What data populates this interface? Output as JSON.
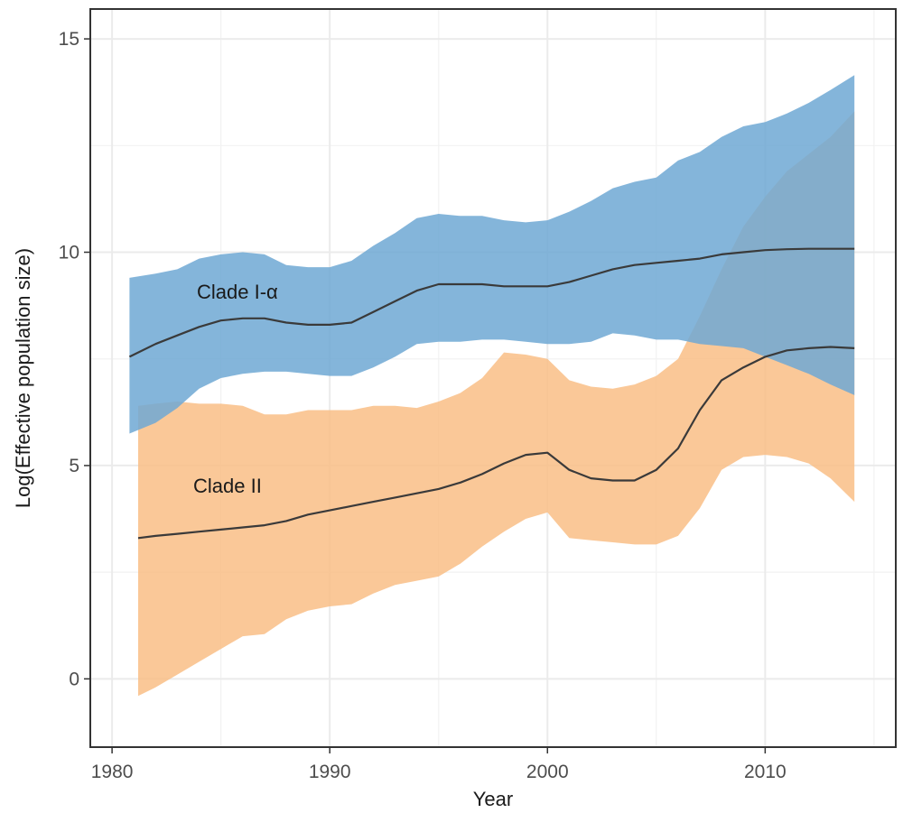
{
  "chart_data": {
    "type": "area",
    "xlabel": "Year",
    "ylabel": "Log(Effective population size)",
    "xlim": [
      1979,
      2016
    ],
    "ylim": [
      -1.6,
      15.7
    ],
    "x_ticks": [
      1980,
      1990,
      2000,
      2010
    ],
    "y_ticks": [
      0,
      5,
      10,
      15
    ],
    "grid": true,
    "series": [
      {
        "label": "Clade I-α",
        "fill_color": "#6fa8d4",
        "line_color": "#3a3a3a",
        "x": [
          1980.8,
          1982,
          1983,
          1984,
          1985,
          1986,
          1987,
          1988,
          1989,
          1990,
          1991,
          1992,
          1993,
          1994,
          1995,
          1996,
          1997,
          1998,
          1999,
          2000,
          2001,
          2002,
          2003,
          2004,
          2005,
          2006,
          2007,
          2008,
          2009,
          2010,
          2011,
          2012,
          2013,
          2014.1
        ],
        "mean": [
          7.55,
          7.85,
          8.05,
          8.25,
          8.4,
          8.45,
          8.45,
          8.35,
          8.3,
          8.3,
          8.35,
          8.6,
          8.85,
          9.1,
          9.25,
          9.25,
          9.25,
          9.2,
          9.2,
          9.2,
          9.3,
          9.45,
          9.6,
          9.7,
          9.75,
          9.8,
          9.85,
          9.95,
          10.0,
          10.05,
          10.07,
          10.08,
          10.08,
          10.08
        ],
        "lower": [
          5.75,
          6.0,
          6.35,
          6.8,
          7.05,
          7.15,
          7.2,
          7.2,
          7.15,
          7.1,
          7.1,
          7.3,
          7.55,
          7.85,
          7.9,
          7.9,
          7.95,
          7.95,
          7.9,
          7.85,
          7.85,
          7.9,
          8.1,
          8.05,
          7.95,
          7.95,
          7.85,
          7.8,
          7.75,
          7.55,
          7.35,
          7.15,
          6.9,
          6.65
        ],
        "upper": [
          9.4,
          9.5,
          9.6,
          9.85,
          9.95,
          10.0,
          9.95,
          9.7,
          9.65,
          9.65,
          9.8,
          10.15,
          10.45,
          10.8,
          10.9,
          10.85,
          10.85,
          10.75,
          10.7,
          10.75,
          10.95,
          11.2,
          11.5,
          11.65,
          11.75,
          12.15,
          12.35,
          12.7,
          12.95,
          13.05,
          13.25,
          13.5,
          13.8,
          14.15
        ]
      },
      {
        "label": "Clade II",
        "fill_color": "#f9be86",
        "line_color": "#3a3a3a",
        "x": [
          1981.2,
          1982,
          1983,
          1984,
          1985,
          1986,
          1987,
          1988,
          1989,
          1990,
          1991,
          1992,
          1993,
          1994,
          1995,
          1996,
          1997,
          1998,
          1999,
          2000,
          2001,
          2002,
          2003,
          2004,
          2005,
          2006,
          2007,
          2008,
          2009,
          2010,
          2011,
          2012,
          2013,
          2014.1
        ],
        "mean": [
          3.3,
          3.35,
          3.4,
          3.45,
          3.5,
          3.55,
          3.6,
          3.7,
          3.85,
          3.95,
          4.05,
          4.15,
          4.25,
          4.35,
          4.45,
          4.6,
          4.8,
          5.05,
          5.25,
          5.3,
          4.9,
          4.7,
          4.65,
          4.65,
          4.9,
          5.4,
          6.3,
          7.0,
          7.3,
          7.55,
          7.7,
          7.75,
          7.78,
          7.75
        ],
        "lower": [
          -0.4,
          -0.2,
          0.1,
          0.4,
          0.7,
          1.0,
          1.05,
          1.4,
          1.6,
          1.7,
          1.75,
          2.0,
          2.2,
          2.3,
          2.4,
          2.7,
          3.1,
          3.45,
          3.75,
          3.9,
          3.3,
          3.25,
          3.2,
          3.15,
          3.15,
          3.35,
          4.0,
          4.9,
          5.2,
          5.25,
          5.2,
          5.05,
          4.7,
          4.15
        ],
        "upper": [
          6.4,
          6.45,
          6.5,
          6.45,
          6.45,
          6.4,
          6.2,
          6.2,
          6.3,
          6.3,
          6.3,
          6.4,
          6.4,
          6.35,
          6.5,
          6.7,
          7.05,
          7.65,
          7.6,
          7.5,
          7.0,
          6.85,
          6.8,
          6.9,
          7.1,
          7.5,
          8.5,
          9.6,
          10.6,
          11.3,
          11.9,
          12.3,
          12.7,
          13.3
        ]
      }
    ]
  }
}
